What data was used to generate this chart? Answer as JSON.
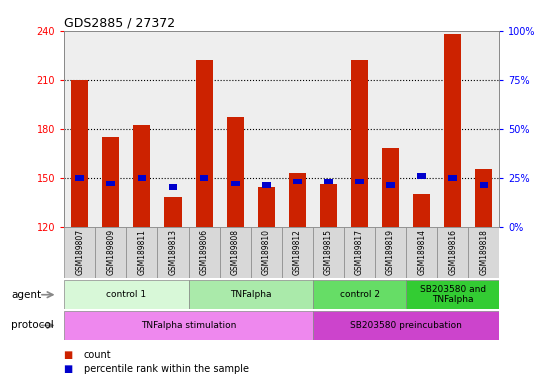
{
  "title": "GDS2885 / 27372",
  "samples": [
    "GSM189807",
    "GSM189809",
    "GSM189811",
    "GSM189813",
    "GSM189806",
    "GSM189808",
    "GSM189810",
    "GSM189812",
    "GSM189815",
    "GSM189817",
    "GSM189819",
    "GSM189814",
    "GSM189816",
    "GSM189818"
  ],
  "count_values": [
    210,
    175,
    182,
    138,
    222,
    187,
    144,
    153,
    146,
    222,
    168,
    140,
    238,
    155
  ],
  "percentile_values": [
    25,
    22,
    25,
    20,
    25,
    22,
    21,
    23,
    23,
    23,
    21,
    26,
    25,
    21
  ],
  "ylim_left": [
    120,
    240
  ],
  "ylim_right": [
    0,
    100
  ],
  "yticks_left": [
    120,
    150,
    180,
    210,
    240
  ],
  "yticks_right": [
    0,
    25,
    50,
    75,
    100
  ],
  "ytick_labels_right": [
    "0%",
    "25%",
    "50%",
    "75%",
    "100%"
  ],
  "bar_color": "#cc2200",
  "percentile_color": "#0000cc",
  "agent_groups": [
    {
      "label": "control 1",
      "start": 0,
      "end": 3,
      "color": "#d8f8d8"
    },
    {
      "label": "TNFalpha",
      "start": 4,
      "end": 7,
      "color": "#aaeaaa"
    },
    {
      "label": "control 2",
      "start": 8,
      "end": 10,
      "color": "#66dd66"
    },
    {
      "label": "SB203580 and\nTNFalpha",
      "start": 11,
      "end": 13,
      "color": "#33cc33"
    }
  ],
  "protocol_groups": [
    {
      "label": "TNFalpha stimulation",
      "start": 0,
      "end": 7,
      "color": "#ee88ee"
    },
    {
      "label": "SB203580 preincubation",
      "start": 8,
      "end": 13,
      "color": "#cc44cc"
    }
  ],
  "agent_label": "agent",
  "protocol_label": "protocol",
  "legend_count": "count",
  "legend_percentile": "percentile rank within the sample"
}
